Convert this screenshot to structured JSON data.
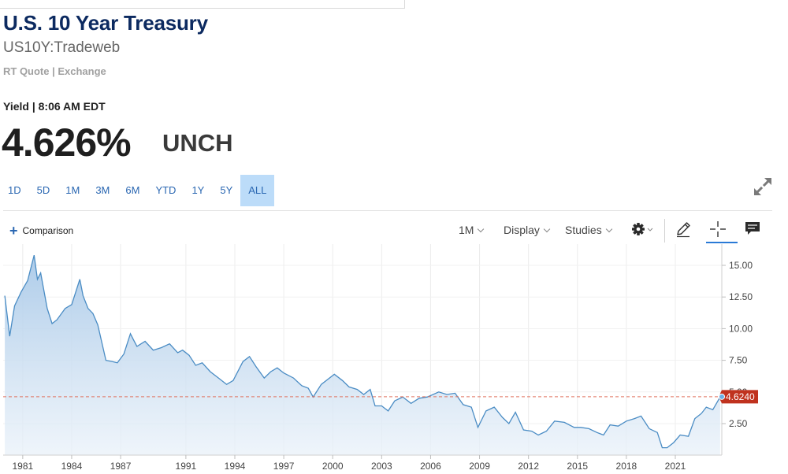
{
  "header": {
    "title": "U.S. 10 Year Treasury",
    "symbol": "US10Y:Tradeweb",
    "quote_source": "RT Quote | Exchange",
    "yield_label": "Yield | 8:06 AM EDT",
    "price": "4.626%",
    "change": "UNCH"
  },
  "ranges": [
    "1D",
    "5D",
    "1M",
    "3M",
    "6M",
    "YTD",
    "1Y",
    "5Y",
    "ALL"
  ],
  "active_range": "ALL",
  "toolbar": {
    "comparison_label": "Comparison",
    "interval_label": "1M",
    "display_label": "Display",
    "studies_label": "Studies"
  },
  "icons": [
    "plus-icon",
    "expand-icon",
    "gear-icon",
    "pencil-icon",
    "crosshair-icon",
    "annotation-icon"
  ],
  "colors": {
    "accent": "#2a67b2",
    "line": "#4a8cc4",
    "area_top": "#a9c9e8",
    "last_price_bg": "#c0321e"
  },
  "chart_data": {
    "type": "area",
    "x_ticks": [
      "1981",
      "1984",
      "1987",
      "1991",
      "1994",
      "1997",
      "2000",
      "2003",
      "2006",
      "2009",
      "2012",
      "2015",
      "2018",
      "2021"
    ],
    "y_ticks": [
      "15.00",
      "12.50",
      "10.00",
      "7.50",
      "5.00",
      "2.50"
    ],
    "ylim": [
      0.5,
      16.5
    ],
    "xlim": [
      1979.8,
      2023.85
    ],
    "last_value_label": "4.6240",
    "last_value": 4.624,
    "series": [
      {
        "x": [
          1979.9,
          1980.2,
          1980.5,
          1980.9,
          1981.3,
          1981.7,
          1981.9,
          1982.1,
          1982.5,
          1982.8,
          1983.1,
          1983.6,
          1984.0,
          1984.5,
          1984.7,
          1985.0,
          1985.3,
          1985.6,
          1986.1,
          1986.5,
          1986.8,
          1987.2,
          1987.6,
          1987.8,
          1988.0,
          1988.5,
          1989.0,
          1989.5,
          1990.0,
          1990.5,
          1990.8,
          1991.2,
          1991.6,
          1992.0,
          1992.5,
          1993.0,
          1993.5,
          1993.9,
          1994.5,
          1994.9,
          1995.3,
          1995.8,
          1996.2,
          1996.6,
          1997.0,
          1997.6,
          1998.1,
          1998.5,
          1998.8,
          1999.3,
          1999.7,
          2000.1,
          2000.6,
          2001.0,
          2001.5,
          2001.9,
          2002.3,
          2002.6,
          2003.0,
          2003.4,
          2003.8,
          2004.3,
          2004.8,
          2005.3,
          2005.8,
          2006.5,
          2007.0,
          2007.5,
          2008.0,
          2008.5,
          2008.9,
          2009.4,
          2009.9,
          2010.4,
          2010.8,
          2011.2,
          2011.7,
          2012.2,
          2012.6,
          2013.1,
          2013.6,
          2014.2,
          2014.8,
          2015.2,
          2015.7,
          2016.2,
          2016.6,
          2017.0,
          2017.5,
          2018.0,
          2018.5,
          2018.9,
          2019.4,
          2019.9,
          2020.2,
          2020.5,
          2020.9,
          2021.3,
          2021.8,
          2022.2,
          2022.6,
          2022.9,
          2023.3,
          2023.75
        ],
        "values": [
          12.6,
          9.4,
          11.8,
          12.9,
          13.8,
          15.8,
          13.9,
          14.4,
          11.6,
          10.4,
          10.7,
          11.6,
          11.9,
          13.9,
          12.6,
          11.6,
          11.2,
          10.3,
          7.5,
          7.4,
          7.3,
          8.0,
          9.6,
          9.1,
          8.6,
          9.0,
          8.3,
          8.5,
          8.8,
          8.1,
          8.3,
          7.9,
          7.1,
          7.3,
          6.6,
          6.1,
          5.6,
          5.9,
          7.4,
          7.8,
          7.0,
          6.1,
          6.6,
          6.9,
          6.5,
          6.1,
          5.5,
          5.3,
          4.6,
          5.6,
          6.0,
          6.4,
          5.9,
          5.4,
          5.2,
          4.8,
          5.2,
          3.9,
          3.9,
          3.5,
          4.3,
          4.6,
          4.1,
          4.5,
          4.6,
          5.0,
          4.8,
          4.9,
          4.0,
          3.8,
          2.2,
          3.5,
          3.8,
          3.0,
          2.5,
          3.4,
          2.0,
          1.9,
          1.6,
          1.9,
          2.7,
          2.6,
          2.2,
          2.2,
          2.1,
          1.8,
          1.6,
          2.4,
          2.3,
          2.7,
          2.9,
          3.1,
          2.1,
          1.8,
          0.6,
          0.6,
          1.0,
          1.6,
          1.5,
          2.9,
          3.3,
          3.8,
          3.6,
          4.6
        ]
      }
    ]
  }
}
